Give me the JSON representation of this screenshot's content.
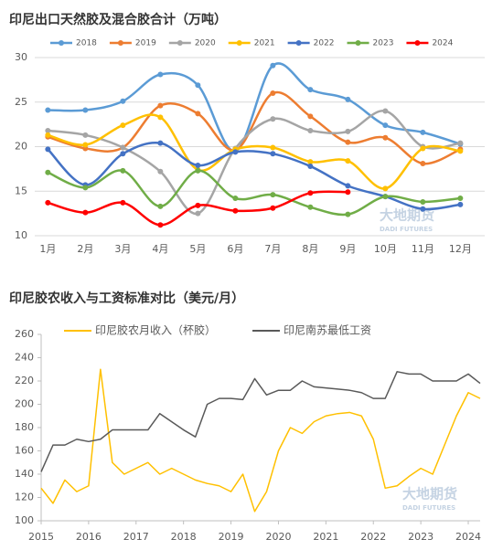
{
  "chart_data": [
    {
      "type": "line",
      "title": "印尼出口天然胶及混合胶合计（万吨）",
      "categories": [
        "1月",
        "2月",
        "3月",
        "4月",
        "5月",
        "6月",
        "7月",
        "8月",
        "9月",
        "10月",
        "11月",
        "12月"
      ],
      "series": [
        {
          "name": "2018",
          "color": "#5b9bd5",
          "values": [
            24.1,
            24.1,
            25.1,
            28.1,
            26.9,
            19.5,
            29.1,
            26.4,
            25.3,
            22.4,
            21.6,
            20.3
          ]
        },
        {
          "name": "2019",
          "color": "#ed7d31",
          "values": [
            21.1,
            19.8,
            19.9,
            24.6,
            23.7,
            19.6,
            26.0,
            23.4,
            20.5,
            21.0,
            18.1,
            19.7
          ]
        },
        {
          "name": "2020",
          "color": "#a5a5a5",
          "values": [
            21.8,
            21.3,
            19.9,
            17.2,
            12.5,
            19.8,
            23.1,
            21.8,
            21.7,
            24.0,
            20.0,
            20.4
          ]
        },
        {
          "name": "2021",
          "color": "#ffc000",
          "values": [
            21.3,
            20.2,
            22.4,
            23.3,
            17.4,
            19.7,
            19.9,
            18.3,
            18.4,
            15.3,
            19.8,
            19.5
          ]
        },
        {
          "name": "2022",
          "color": "#4472c4",
          "values": [
            19.7,
            15.7,
            19.2,
            20.4,
            17.9,
            19.4,
            19.2,
            17.8,
            15.6,
            14.4,
            13.0,
            13.5
          ]
        },
        {
          "name": "2023",
          "color": "#70ad47",
          "values": [
            17.1,
            15.4,
            17.3,
            13.3,
            17.3,
            14.2,
            14.6,
            13.2,
            12.4,
            14.4,
            13.8,
            14.2
          ]
        },
        {
          "name": "2024",
          "color": "#ff0000",
          "values": [
            13.7,
            12.6,
            13.7,
            11.2,
            13.4,
            12.8,
            13.1,
            14.8,
            14.9,
            null,
            null,
            null
          ]
        }
      ],
      "ylim": [
        10,
        30
      ],
      "yticks": [
        10,
        15,
        20,
        25,
        30
      ],
      "grid": true,
      "smooth": true,
      "markers": true
    },
    {
      "type": "line",
      "title": "印尼胶农收入与工资标准对比（美元/月）",
      "x": [
        2015,
        2015.25,
        2015.5,
        2015.75,
        2016,
        2016.25,
        2016.5,
        2016.75,
        2017,
        2017.25,
        2017.5,
        2017.75,
        2018,
        2018.25,
        2018.5,
        2018.75,
        2019,
        2019.25,
        2019.5,
        2019.75,
        2020,
        2020.25,
        2020.5,
        2020.75,
        2021,
        2021.25,
        2021.5,
        2021.75,
        2022,
        2022.25,
        2022.5,
        2022.75,
        2023,
        2023.25,
        2023.5,
        2023.75,
        2024,
        2024.25
      ],
      "series": [
        {
          "name": "印尼胶农月收入（杯胶）",
          "color": "#ffc000",
          "values": [
            128,
            115,
            135,
            125,
            130,
            230,
            150,
            140,
            145,
            150,
            140,
            145,
            140,
            135,
            132,
            130,
            125,
            140,
            108,
            125,
            160,
            180,
            175,
            185,
            190,
            192,
            193,
            190,
            170,
            128,
            130,
            138,
            145,
            140,
            165,
            190,
            210,
            205
          ]
        },
        {
          "name": "印尼南苏最低工资",
          "color": "#595959",
          "values": [
            142,
            165,
            165,
            170,
            168,
            170,
            178,
            178,
            178,
            178,
            192,
            185,
            178,
            172,
            200,
            205,
            205,
            204,
            222,
            208,
            212,
            212,
            220,
            215,
            214,
            213,
            212,
            210,
            205,
            205,
            228,
            226,
            226,
            220,
            220,
            220,
            226,
            218
          ]
        }
      ],
      "xlim": [
        2015,
        2024.25
      ],
      "xticks": [
        2015,
        2016,
        2017,
        2018,
        2019,
        2020,
        2021,
        2022,
        2023,
        2024
      ],
      "ylim": [
        100,
        260
      ],
      "yticks": [
        100,
        120,
        140,
        160,
        180,
        200,
        220,
        240,
        260
      ],
      "grid": false,
      "smooth": false,
      "markers": false
    }
  ],
  "watermark": [
    "大地期货",
    "DADI FUTURES"
  ]
}
